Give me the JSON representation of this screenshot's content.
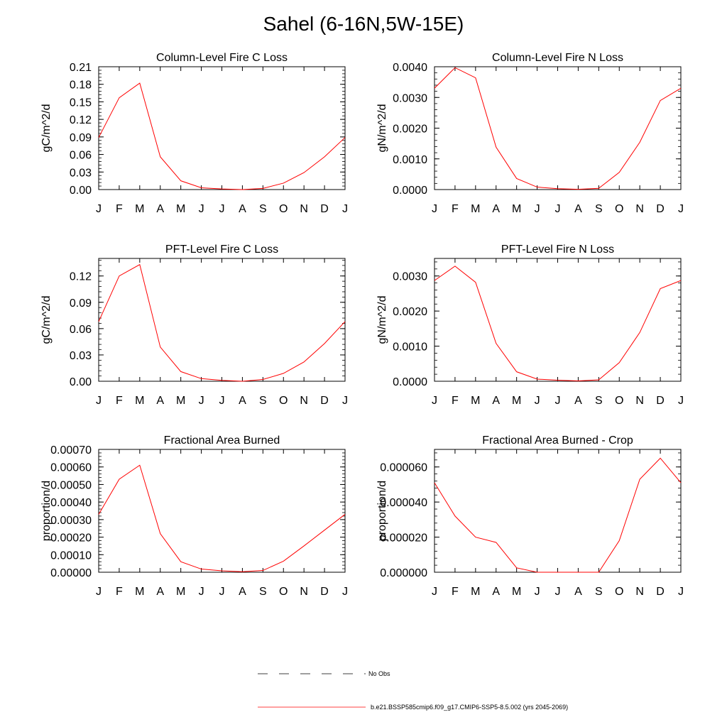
{
  "page": {
    "title": "Sahel (6-16N,5W-15E)"
  },
  "months": [
    "J",
    "F",
    "M",
    "A",
    "M",
    "J",
    "J",
    "A",
    "S",
    "O",
    "N",
    "D",
    "J"
  ],
  "legend": {
    "entries": [
      {
        "label": "No Obs",
        "color": "#000000",
        "dash": true
      },
      {
        "label": "b.e21.BSSP585cmip6.f09_g17.CMIP6-SSP5-8.5.002 (yrs 2045-2069)",
        "color": "#ff0000",
        "dash": false
      }
    ]
  },
  "chart_data": [
    {
      "type": "line",
      "title": "Column-Level Fire C Loss",
      "ylabel": "gC/m^2/d",
      "ylim": [
        0,
        0.21
      ],
      "yticks": [
        "0.00",
        "0.03",
        "0.06",
        "0.09",
        "0.12",
        "0.15",
        "0.18",
        "0.21"
      ],
      "series": [
        {
          "color": "#ff0000",
          "values": [
            0.089,
            0.157,
            0.182,
            0.056,
            0.015,
            0.003,
            0.001,
            0.0,
            0.002,
            0.011,
            0.029,
            0.056,
            0.089
          ]
        }
      ]
    },
    {
      "type": "line",
      "title": "Column-Level Fire N Loss",
      "ylabel": "gN/m^2/d",
      "ylim": [
        0,
        0.004
      ],
      "yticks": [
        "0.0000",
        "0.0010",
        "0.0020",
        "0.0030",
        "0.0040"
      ],
      "series": [
        {
          "color": "#ff0000",
          "values": [
            0.0033,
            0.00397,
            0.00364,
            0.00138,
            0.00036,
            8e-05,
            3e-05,
            1e-05,
            4e-05,
            0.00056,
            0.00154,
            0.0029,
            0.0033
          ]
        }
      ]
    },
    {
      "type": "line",
      "title": "PFT-Level Fire C Loss",
      "ylabel": "gC/m^2/d",
      "ylim": [
        0,
        0.14
      ],
      "yticks": [
        "0.00",
        "0.03",
        "0.06",
        "0.09",
        "0.12"
      ],
      "series": [
        {
          "color": "#ff0000",
          "values": [
            0.068,
            0.12,
            0.133,
            0.039,
            0.011,
            0.003,
            0.001,
            0.0,
            0.002,
            0.009,
            0.022,
            0.043,
            0.068
          ]
        }
      ]
    },
    {
      "type": "line",
      "title": "PFT-Level Fire N Loss",
      "ylabel": "gN/m^2/d",
      "ylim": [
        0,
        0.0035
      ],
      "yticks": [
        "0.0000",
        "0.0010",
        "0.0020",
        "0.0030"
      ],
      "series": [
        {
          "color": "#ff0000",
          "values": [
            0.00287,
            0.00328,
            0.00282,
            0.00108,
            0.00027,
            6e-05,
            3e-05,
            1e-05,
            4e-05,
            0.00053,
            0.00139,
            0.00264,
            0.00287
          ]
        }
      ]
    },
    {
      "type": "line",
      "title": "Fractional Area Burned",
      "ylabel": "proportion/d",
      "ylim": [
        0,
        0.0007
      ],
      "yticks": [
        "0.00000",
        "0.00010",
        "0.00020",
        "0.00030",
        "0.00040",
        "0.00050",
        "0.00060",
        "0.00070"
      ],
      "series": [
        {
          "color": "#ff0000",
          "values": [
            0.00033,
            0.00053,
            0.00061,
            0.00022,
            6e-05,
            1.8e-05,
            8e-06,
            3e-06,
            1e-05,
            6.3e-05,
            0.00015,
            0.00024,
            0.00033
          ]
        }
      ]
    },
    {
      "type": "line",
      "title": "Fractional Area Burned - Crop",
      "ylabel": "proportion/d",
      "ylim": [
        0,
        7e-05
      ],
      "yticks": [
        "0.000000",
        "0.000020",
        "0.000040",
        "0.000060"
      ],
      "series": [
        {
          "color": "#ff0000",
          "values": [
            5.1e-05,
            3.2e-05,
            2e-05,
            1.7e-05,
            2.5e-06,
            0.0,
            0.0,
            0.0,
            0.0,
            1.8e-05,
            5.3e-05,
            6.5e-05,
            5.1e-05
          ]
        }
      ]
    }
  ]
}
